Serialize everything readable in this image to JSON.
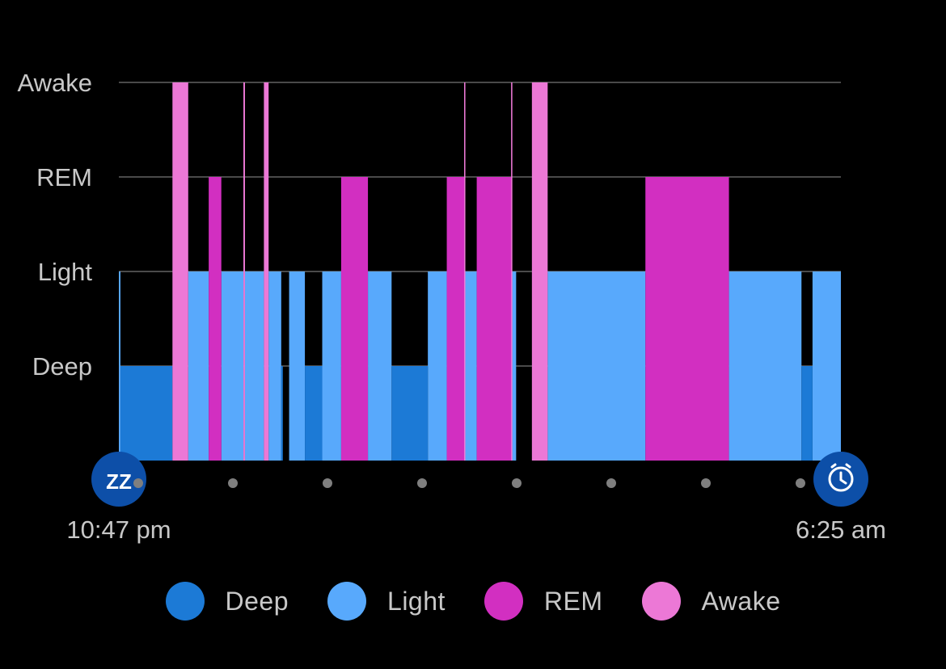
{
  "chart_data": {
    "type": "bar",
    "subtype": "sleep-stage-hypnogram",
    "y_levels": [
      "Deep",
      "Light",
      "REM",
      "Awake"
    ],
    "start_time": "10:47 pm",
    "end_time": "6:25 am",
    "x_unit": "minutes after 10:47 pm",
    "x_range": [
      0,
      458
    ],
    "tick_count": 8,
    "series": [
      {
        "name": "Deep",
        "color": "#1c7ad6",
        "level": 0,
        "segments": [
          [
            1,
            34
          ],
          [
            103,
            104
          ],
          [
            118,
            129
          ],
          [
            173,
            196
          ],
          [
            433,
            440
          ]
        ]
      },
      {
        "name": "Light",
        "color": "#58a9fc",
        "level": 1,
        "segments": [
          [
            0,
            1
          ],
          [
            44,
            57
          ],
          [
            65,
            79
          ],
          [
            80,
            92
          ],
          [
            95,
            103
          ],
          [
            108,
            118
          ],
          [
            129,
            141
          ],
          [
            158,
            173
          ],
          [
            196,
            208
          ],
          [
            219,
            227
          ],
          [
            249,
            252
          ],
          [
            272,
            334
          ],
          [
            387,
            433
          ],
          [
            440,
            458
          ]
        ]
      },
      {
        "name": "REM",
        "color": "#d22fc1",
        "level": 2,
        "segments": [
          [
            57,
            65
          ],
          [
            141,
            158
          ],
          [
            208,
            219
          ],
          [
            227,
            249
          ],
          [
            334,
            387
          ]
        ]
      },
      {
        "name": "Awake",
        "color": "#ec78d6",
        "level": 3,
        "segments": [
          [
            34,
            44
          ],
          [
            79,
            80
          ],
          [
            92,
            95
          ],
          [
            219,
            219.8
          ],
          [
            248.8,
            249.6
          ],
          [
            262,
            272
          ]
        ]
      }
    ],
    "grid": true,
    "legend_position": "bottom"
  },
  "legend": [
    {
      "label": "Deep",
      "color": "#1c7ad6"
    },
    {
      "label": "Light",
      "color": "#58a9fc"
    },
    {
      "label": "REM",
      "color": "#d22fc1"
    },
    {
      "label": "Awake",
      "color": "#ec78d6"
    }
  ],
  "icons": {
    "start": "sleep-zz-icon",
    "end": "alarm-clock-icon",
    "start_glyph": "ZZ",
    "badge_color": "#0d4fa8"
  }
}
